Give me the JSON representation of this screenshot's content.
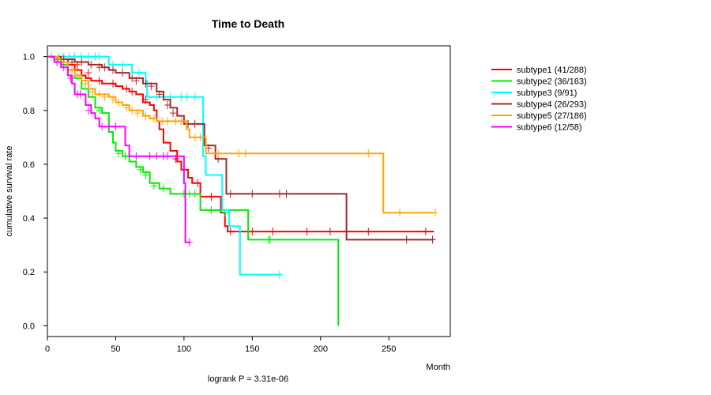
{
  "chart_data": {
    "type": "line",
    "title": "Time to Death",
    "xlabel": "Month",
    "ylabel": "cumulative survival rate",
    "xlim": [
      0,
      295
    ],
    "ylim": [
      -0.04,
      1.04
    ],
    "xticks": [
      "0",
      "50",
      "100",
      "150",
      "200",
      "250"
    ],
    "xtick_values": [
      0,
      50,
      100,
      150,
      200,
      250
    ],
    "yticks": [
      "0.0",
      "0.2",
      "0.4",
      "0.6",
      "0.8",
      "1.0"
    ],
    "ytick_values": [
      0,
      0.2,
      0.4,
      0.6,
      0.8,
      1.0
    ],
    "annotation": "logrank P = 3.31e-06",
    "legend_position": "right",
    "series": [
      {
        "name": "subtype1 (41/288)",
        "color": "#ff0000",
        "points": [
          [
            0,
            1.0
          ],
          [
            8,
            0.99
          ],
          [
            15,
            0.97
          ],
          [
            20,
            0.95
          ],
          [
            25,
            0.93
          ],
          [
            28,
            0.92
          ],
          [
            32,
            0.91
          ],
          [
            40,
            0.9
          ],
          [
            50,
            0.89
          ],
          [
            55,
            0.88
          ],
          [
            60,
            0.87
          ],
          [
            65,
            0.86
          ],
          [
            70,
            0.83
          ],
          [
            75,
            0.82
          ],
          [
            78,
            0.8
          ],
          [
            80,
            0.76
          ],
          [
            82,
            0.73
          ],
          [
            85,
            0.68
          ],
          [
            90,
            0.65
          ],
          [
            95,
            0.61
          ],
          [
            98,
            0.58
          ],
          [
            103,
            0.55
          ],
          [
            106,
            0.53
          ],
          [
            112,
            0.48
          ],
          [
            127,
            0.42
          ],
          [
            130,
            0.37
          ],
          [
            132,
            0.35
          ],
          [
            283,
            0.35
          ]
        ],
        "censored": [
          [
            22,
            0.97
          ],
          [
            30,
            0.94
          ],
          [
            38,
            0.91
          ],
          [
            48,
            0.9
          ],
          [
            58,
            0.88
          ],
          [
            62,
            0.87
          ],
          [
            72,
            0.84
          ],
          [
            94,
            0.62
          ],
          [
            100,
            0.58
          ],
          [
            110,
            0.53
          ],
          [
            120,
            0.48
          ],
          [
            134,
            0.35
          ],
          [
            150,
            0.35
          ],
          [
            165,
            0.35
          ],
          [
            190,
            0.35
          ],
          [
            207,
            0.35
          ],
          [
            235,
            0.35
          ],
          [
            277,
            0.35
          ]
        ]
      },
      {
        "name": "subtype2 (36/163)",
        "color": "#00ee00",
        "points": [
          [
            0,
            1.0
          ],
          [
            5,
            0.99
          ],
          [
            10,
            0.97
          ],
          [
            15,
            0.95
          ],
          [
            20,
            0.92
          ],
          [
            25,
            0.88
          ],
          [
            30,
            0.85
          ],
          [
            35,
            0.81
          ],
          [
            40,
            0.79
          ],
          [
            45,
            0.72
          ],
          [
            48,
            0.68
          ],
          [
            50,
            0.65
          ],
          [
            55,
            0.63
          ],
          [
            60,
            0.61
          ],
          [
            65,
            0.59
          ],
          [
            70,
            0.57
          ],
          [
            75,
            0.53
          ],
          [
            82,
            0.51
          ],
          [
            90,
            0.49
          ],
          [
            105,
            0.49
          ],
          [
            112,
            0.43
          ],
          [
            147,
            0.32
          ],
          [
            213,
            0.32
          ],
          [
            213,
            0.0
          ]
        ],
        "censored": [
          [
            38,
            0.8
          ],
          [
            52,
            0.64
          ],
          [
            57,
            0.63
          ],
          [
            68,
            0.58
          ],
          [
            72,
            0.56
          ],
          [
            78,
            0.52
          ],
          [
            85,
            0.51
          ],
          [
            100,
            0.49
          ],
          [
            104,
            0.49
          ],
          [
            108,
            0.49
          ],
          [
            120,
            0.43
          ],
          [
            130,
            0.42
          ],
          [
            162,
            0.32
          ],
          [
            163,
            0.32
          ]
        ]
      },
      {
        "name": "subtype3 (9/91)",
        "color": "#00ffff",
        "points": [
          [
            0,
            1.0
          ],
          [
            40,
            1.0
          ],
          [
            45,
            0.97
          ],
          [
            60,
            0.97
          ],
          [
            62,
            0.94
          ],
          [
            65,
            0.94
          ],
          [
            72,
            0.91
          ],
          [
            73,
            0.85
          ],
          [
            112,
            0.85
          ],
          [
            114,
            0.63
          ],
          [
            116,
            0.56
          ],
          [
            126,
            0.56
          ],
          [
            128,
            0.43
          ],
          [
            133,
            0.37
          ],
          [
            140,
            0.37
          ],
          [
            141,
            0.19
          ],
          [
            171,
            0.19
          ]
        ],
        "censored": [
          [
            3,
            1.0
          ],
          [
            8,
            1.0
          ],
          [
            12,
            1.0
          ],
          [
            16,
            1.0
          ],
          [
            20,
            1.0
          ],
          [
            25,
            1.0
          ],
          [
            30,
            1.0
          ],
          [
            35,
            1.0
          ],
          [
            38,
            1.0
          ],
          [
            48,
            0.97
          ],
          [
            55,
            0.97
          ],
          [
            67,
            0.94
          ],
          [
            80,
            0.85
          ],
          [
            90,
            0.85
          ],
          [
            98,
            0.85
          ],
          [
            102,
            0.85
          ],
          [
            108,
            0.85
          ],
          [
            170,
            0.19
          ]
        ]
      },
      {
        "name": "subtype4 (26/293)",
        "color": "#a52a2a",
        "points": [
          [
            0,
            1.0
          ],
          [
            10,
            0.99
          ],
          [
            20,
            0.98
          ],
          [
            30,
            0.97
          ],
          [
            40,
            0.96
          ],
          [
            45,
            0.95
          ],
          [
            50,
            0.94
          ],
          [
            60,
            0.92
          ],
          [
            70,
            0.9
          ],
          [
            80,
            0.87
          ],
          [
            85,
            0.84
          ],
          [
            90,
            0.81
          ],
          [
            95,
            0.78
          ],
          [
            100,
            0.75
          ],
          [
            110,
            0.75
          ],
          [
            115,
            0.67
          ],
          [
            123,
            0.62
          ],
          [
            129,
            0.62
          ],
          [
            131,
            0.49
          ],
          [
            218,
            0.49
          ],
          [
            219,
            0.32
          ],
          [
            283,
            0.32
          ]
        ],
        "censored": [
          [
            12,
            0.99
          ],
          [
            18,
            0.98
          ],
          [
            25,
            0.98
          ],
          [
            32,
            0.97
          ],
          [
            38,
            0.96
          ],
          [
            42,
            0.96
          ],
          [
            48,
            0.95
          ],
          [
            55,
            0.94
          ],
          [
            62,
            0.92
          ],
          [
            65,
            0.91
          ],
          [
            72,
            0.9
          ],
          [
            76,
            0.89
          ],
          [
            82,
            0.86
          ],
          [
            88,
            0.82
          ],
          [
            92,
            0.79
          ],
          [
            98,
            0.76
          ],
          [
            103,
            0.75
          ],
          [
            108,
            0.75
          ],
          [
            118,
            0.66
          ],
          [
            125,
            0.62
          ],
          [
            134,
            0.49
          ],
          [
            150,
            0.49
          ],
          [
            170,
            0.49
          ],
          [
            175,
            0.49
          ],
          [
            263,
            0.32
          ],
          [
            282,
            0.32
          ]
        ]
      },
      {
        "name": "subtype5 (27/186)",
        "color": "#ffa500",
        "points": [
          [
            0,
            1.0
          ],
          [
            8,
            0.98
          ],
          [
            15,
            0.95
          ],
          [
            20,
            0.93
          ],
          [
            25,
            0.91
          ],
          [
            30,
            0.88
          ],
          [
            35,
            0.86
          ],
          [
            45,
            0.85
          ],
          [
            50,
            0.83
          ],
          [
            55,
            0.82
          ],
          [
            60,
            0.8
          ],
          [
            70,
            0.78
          ],
          [
            75,
            0.77
          ],
          [
            80,
            0.76
          ],
          [
            90,
            0.76
          ],
          [
            100,
            0.76
          ],
          [
            102,
            0.73
          ],
          [
            104,
            0.7
          ],
          [
            114,
            0.7
          ],
          [
            116,
            0.64
          ],
          [
            245,
            0.64
          ],
          [
            246,
            0.42
          ],
          [
            283,
            0.42
          ]
        ],
        "censored": [
          [
            10,
            0.98
          ],
          [
            18,
            0.95
          ],
          [
            22,
            0.93
          ],
          [
            28,
            0.9
          ],
          [
            33,
            0.87
          ],
          [
            38,
            0.86
          ],
          [
            42,
            0.85
          ],
          [
            48,
            0.84
          ],
          [
            52,
            0.83
          ],
          [
            58,
            0.81
          ],
          [
            62,
            0.8
          ],
          [
            66,
            0.79
          ],
          [
            72,
            0.78
          ],
          [
            78,
            0.77
          ],
          [
            84,
            0.76
          ],
          [
            88,
            0.76
          ],
          [
            94,
            0.76
          ],
          [
            98,
            0.76
          ],
          [
            108,
            0.7
          ],
          [
            112,
            0.7
          ],
          [
            125,
            0.64
          ],
          [
            140,
            0.64
          ],
          [
            145,
            0.64
          ],
          [
            235,
            0.64
          ],
          [
            258,
            0.42
          ],
          [
            284,
            0.42
          ]
        ]
      },
      {
        "name": "subtype6 (12/58)",
        "color": "#ff00ff",
        "points": [
          [
            0,
            1.0
          ],
          [
            5,
            0.98
          ],
          [
            10,
            0.96
          ],
          [
            15,
            0.93
          ],
          [
            18,
            0.9
          ],
          [
            20,
            0.86
          ],
          [
            25,
            0.86
          ],
          [
            28,
            0.82
          ],
          [
            32,
            0.79
          ],
          [
            35,
            0.77
          ],
          [
            38,
            0.74
          ],
          [
            55,
            0.74
          ],
          [
            57,
            0.67
          ],
          [
            60,
            0.63
          ],
          [
            95,
            0.63
          ],
          [
            100,
            0.53
          ],
          [
            101,
            0.31
          ],
          [
            104,
            0.31
          ]
        ],
        "censored": [
          [
            7,
            0.98
          ],
          [
            12,
            0.96
          ],
          [
            17,
            0.92
          ],
          [
            22,
            0.86
          ],
          [
            24,
            0.86
          ],
          [
            30,
            0.8
          ],
          [
            40,
            0.74
          ],
          [
            45,
            0.74
          ],
          [
            50,
            0.74
          ],
          [
            65,
            0.63
          ],
          [
            75,
            0.63
          ],
          [
            80,
            0.63
          ],
          [
            85,
            0.63
          ],
          [
            88,
            0.63
          ],
          [
            104,
            0.31
          ]
        ]
      }
    ]
  }
}
